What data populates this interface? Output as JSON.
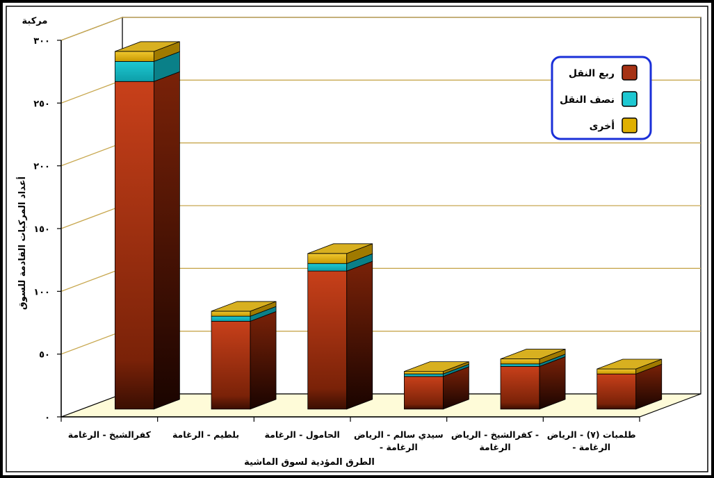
{
  "chart_data": {
    "type": "bar",
    "stacked": true,
    "three_d": true,
    "y_unit": "مركبة",
    "ylabel": "أعداد المركبات القادمة للسوق",
    "xlabel": "الطرق المؤدية لسوق الماشية",
    "ylim": [
      0,
      300
    ],
    "yticks": [
      {
        "value": 0,
        "label": "٠"
      },
      {
        "value": 50,
        "label": "٥٠"
      },
      {
        "value": 100,
        "label": "١٠٠"
      },
      {
        "value": 150,
        "label": "١٥٠"
      },
      {
        "value": 200,
        "label": "٢٠٠"
      },
      {
        "value": 250,
        "label": "٢٥٠"
      },
      {
        "value": 300,
        "label": "٣٠٠"
      }
    ],
    "categories": [
      [
        "كفرالشيخ - الرغامة"
      ],
      [
        "بلطيم - الرغامة"
      ],
      [
        "الحامول - الرغامة"
      ],
      [
        "سيدي سالم - الرياض",
        "- الرغامة"
      ],
      [
        "كفرالشيخ - الرياض -",
        "الرغامة"
      ],
      [
        "طلمبات (٧) - الرياض",
        "- الرغامة"
      ]
    ],
    "series": [
      {
        "name": "ربع النقل",
        "color": "#c8401a",
        "values": [
          261,
          70,
          110,
          26,
          34,
          28
        ]
      },
      {
        "name": "نصف النقل",
        "color": "#1ec8d2",
        "values": [
          16,
          4,
          6,
          2,
          2,
          0
        ]
      },
      {
        "name": "أخرى",
        "color": "#e8b800",
        "values": [
          8,
          4,
          8,
          2,
          4,
          4
        ]
      }
    ],
    "grid": true,
    "legend": "top-right",
    "colors": {
      "gridline": "#c8a850",
      "floor": "#fefbd8",
      "legend_border": "#1a2fd8",
      "frame": "#000000"
    }
  }
}
